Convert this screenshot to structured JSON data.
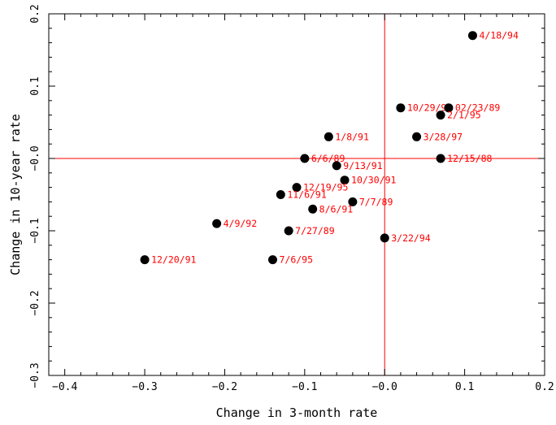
{
  "chart_data": {
    "type": "scatter",
    "xlabel": "Change in 3-month rate",
    "ylabel": "Change in 10-year rate",
    "xlim": [
      -0.42,
      0.2
    ],
    "ylim": [
      -0.3,
      0.2
    ],
    "x_ticks": [
      -0.4,
      -0.3,
      -0.2,
      -0.1,
      0.0,
      0.1,
      0.2
    ],
    "x_tick_labels": [
      "−0.4",
      "−0.3",
      "−0.2",
      "−0.1",
      "−0.0",
      "0.1",
      "0.2"
    ],
    "y_ticks": [
      -0.3,
      -0.2,
      -0.1,
      0.0,
      0.1,
      0.2
    ],
    "y_tick_labels": [
      "−0.3",
      "−0.2",
      "−0.1",
      "−0.0",
      "0.1",
      "0.2"
    ],
    "reference_lines": {
      "x": 0,
      "y": 0,
      "color": "#ff0000"
    },
    "grid": false,
    "marker_color": "#000000",
    "label_color": "#ff0000",
    "points": [
      {
        "x": 0.11,
        "y": 0.17,
        "label": "4/18/94"
      },
      {
        "x": 0.02,
        "y": 0.07,
        "label": "10/29/91"
      },
      {
        "x": 0.08,
        "y": 0.07,
        "label": "02/23/89"
      },
      {
        "x": 0.07,
        "y": 0.06,
        "label": "2/1/95"
      },
      {
        "x": -0.07,
        "y": 0.03,
        "label": "1/8/91"
      },
      {
        "x": 0.04,
        "y": 0.03,
        "label": "3/28/97"
      },
      {
        "x": -0.1,
        "y": 0.0,
        "label": "6/6/89"
      },
      {
        "x": 0.07,
        "y": 0.0,
        "label": "12/15/88"
      },
      {
        "x": -0.06,
        "y": -0.01,
        "label": "9/13/91"
      },
      {
        "x": -0.05,
        "y": -0.03,
        "label": "10/30/91"
      },
      {
        "x": -0.11,
        "y": -0.04,
        "label": "12/19/95"
      },
      {
        "x": -0.13,
        "y": -0.05,
        "label": "11/6/91"
      },
      {
        "x": -0.04,
        "y": -0.06,
        "label": "7/7/89"
      },
      {
        "x": -0.09,
        "y": -0.07,
        "label": "8/6/91"
      },
      {
        "x": -0.21,
        "y": -0.09,
        "label": "4/9/92"
      },
      {
        "x": -0.12,
        "y": -0.1,
        "label": "7/27/89"
      },
      {
        "x": 0.0,
        "y": -0.11,
        "label": "3/22/94"
      },
      {
        "x": -0.14,
        "y": -0.14,
        "label": "7/6/95"
      },
      {
        "x": -0.3,
        "y": -0.14,
        "label": "12/20/91"
      }
    ]
  }
}
